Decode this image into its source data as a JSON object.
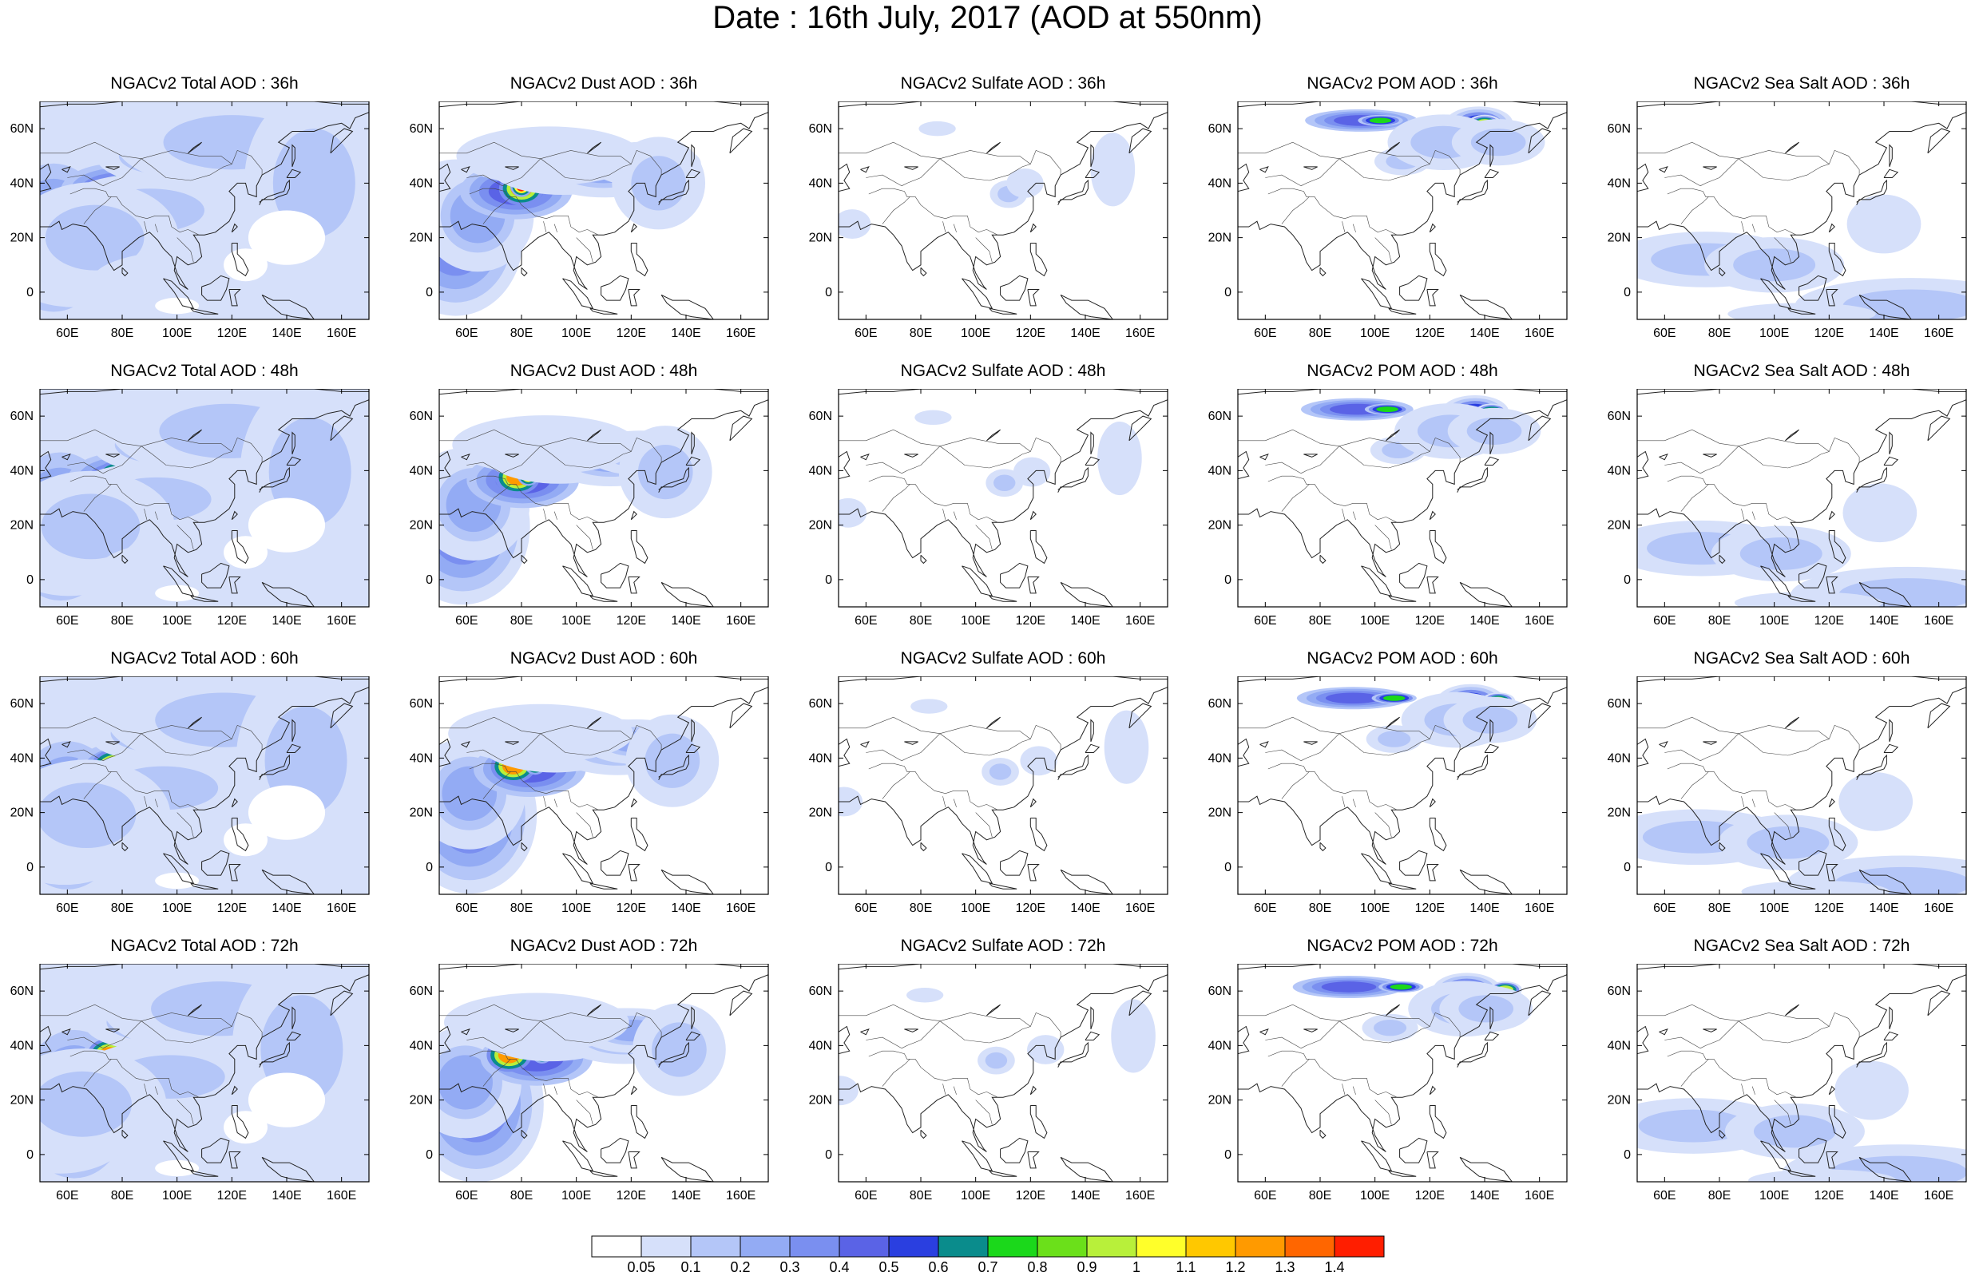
{
  "title": "Date : 16th July, 2017 (AOD at 550nm)",
  "panels": [
    [
      "NGACv2 Total AOD : 36h",
      "NGACv2 Dust AOD : 36h",
      "NGACv2 Sulfate AOD : 36h",
      "NGACv2 POM AOD : 36h",
      "NGACv2 Sea Salt AOD : 36h"
    ],
    [
      "NGACv2 Total AOD : 48h",
      "NGACv2 Dust AOD : 48h",
      "NGACv2 Sulfate AOD : 48h",
      "NGACv2 POM AOD : 48h",
      "NGACv2 Sea Salt AOD : 48h"
    ],
    [
      "NGACv2 Total AOD : 60h",
      "NGACv2 Dust AOD : 60h",
      "NGACv2 Sulfate AOD : 60h",
      "NGACv2 POM AOD : 60h",
      "NGACv2 Sea Salt AOD : 60h"
    ],
    [
      "NGACv2 Total AOD : 72h",
      "NGACv2 Dust AOD : 72h",
      "NGACv2 Sulfate AOD : 72h",
      "NGACv2 POM AOD : 72h",
      "NGACv2 Sea Salt  AOD : 72h"
    ]
  ],
  "map": {
    "lon_range": [
      50,
      170
    ],
    "lat_range": [
      -10,
      70
    ],
    "lon_ticks": [
      "60E",
      "80E",
      "100E",
      "120E",
      "140E",
      "160E"
    ],
    "lat_ticks": [
      "60N",
      "40N",
      "20N",
      "0"
    ]
  },
  "colorbar": {
    "labels": [
      "0.05",
      "0.1",
      "0.2",
      "0.3",
      "0.4",
      "0.5",
      "0.6",
      "0.7",
      "0.8",
      "0.9",
      "1",
      "1.1",
      "1.2",
      "1.3",
      "1.4"
    ],
    "colors": [
      "#ffffff",
      "#d6e0fa",
      "#b4c6f8",
      "#93abf4",
      "#7a8ff0",
      "#5a63e6",
      "#2a3fe0",
      "#0a8c8c",
      "#1bd81b",
      "#6be01a",
      "#b8f03a",
      "#ffff2a",
      "#ffc800",
      "#ff9a00",
      "#ff6600",
      "#ff1e00"
    ]
  }
}
